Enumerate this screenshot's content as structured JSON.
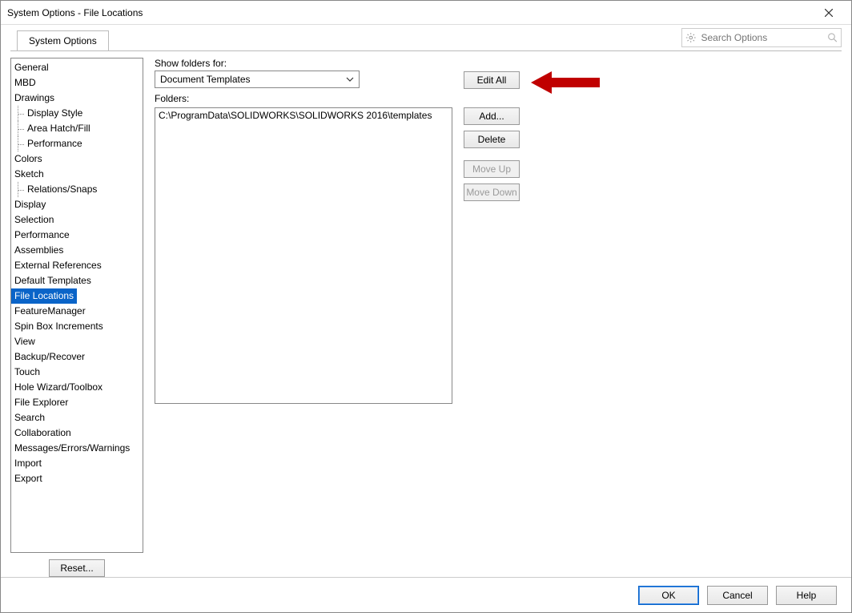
{
  "window": {
    "title": "System Options - File Locations"
  },
  "tab": {
    "label": "System Options"
  },
  "search": {
    "placeholder": "Search Options"
  },
  "labels": {
    "show_folders_for": "Show folders for:",
    "folders": "Folders:"
  },
  "dropdown": {
    "selected": "Document Templates"
  },
  "folders_list": {
    "items": [
      "C:\\ProgramData\\SOLIDWORKS\\SOLIDWORKS 2016\\templates"
    ]
  },
  "buttons": {
    "edit_all": "Edit All",
    "add": "Add...",
    "delete": "Delete",
    "move_up": "Move Up",
    "move_down": "Move Down",
    "reset": "Reset...",
    "ok": "OK",
    "cancel": "Cancel",
    "help": "Help"
  },
  "tree": {
    "items": [
      {
        "label": "General",
        "indent": false,
        "selected": false
      },
      {
        "label": "MBD",
        "indent": false,
        "selected": false
      },
      {
        "label": "Drawings",
        "indent": false,
        "selected": false
      },
      {
        "label": "Display Style",
        "indent": true,
        "selected": false
      },
      {
        "label": "Area Hatch/Fill",
        "indent": true,
        "selected": false
      },
      {
        "label": "Performance",
        "indent": true,
        "selected": false
      },
      {
        "label": "Colors",
        "indent": false,
        "selected": false
      },
      {
        "label": "Sketch",
        "indent": false,
        "selected": false
      },
      {
        "label": "Relations/Snaps",
        "indent": true,
        "selected": false
      },
      {
        "label": "Display",
        "indent": false,
        "selected": false
      },
      {
        "label": "Selection",
        "indent": false,
        "selected": false
      },
      {
        "label": "Performance",
        "indent": false,
        "selected": false
      },
      {
        "label": "Assemblies",
        "indent": false,
        "selected": false
      },
      {
        "label": "External References",
        "indent": false,
        "selected": false
      },
      {
        "label": "Default Templates",
        "indent": false,
        "selected": false
      },
      {
        "label": "File Locations",
        "indent": false,
        "selected": true
      },
      {
        "label": "FeatureManager",
        "indent": false,
        "selected": false
      },
      {
        "label": "Spin Box Increments",
        "indent": false,
        "selected": false
      },
      {
        "label": "View",
        "indent": false,
        "selected": false
      },
      {
        "label": "Backup/Recover",
        "indent": false,
        "selected": false
      },
      {
        "label": "Touch",
        "indent": false,
        "selected": false
      },
      {
        "label": "Hole Wizard/Toolbox",
        "indent": false,
        "selected": false
      },
      {
        "label": "File Explorer",
        "indent": false,
        "selected": false
      },
      {
        "label": "Search",
        "indent": false,
        "selected": false
      },
      {
        "label": "Collaboration",
        "indent": false,
        "selected": false
      },
      {
        "label": "Messages/Errors/Warnings",
        "indent": false,
        "selected": false
      },
      {
        "label": "Import",
        "indent": false,
        "selected": false
      },
      {
        "label": "Export",
        "indent": false,
        "selected": false
      }
    ]
  },
  "annotation": {
    "arrow_color": "#c00000"
  },
  "colors": {
    "selection_bg": "#0a64c8",
    "border": "#888888",
    "disabled_text": "#9a9a9a"
  }
}
